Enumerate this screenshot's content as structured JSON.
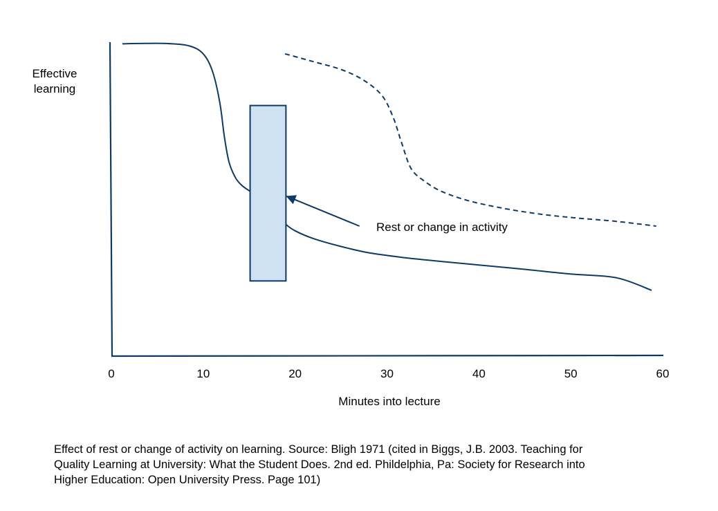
{
  "chart_data": {
    "type": "line",
    "ylabel": [
      "Effective",
      "learning"
    ],
    "xlabel": "Minutes into lecture",
    "xlim": [
      0,
      60
    ],
    "ylim": [
      0,
      1
    ],
    "x_ticks": [
      0,
      10,
      20,
      30,
      40,
      50,
      60
    ],
    "series": [
      {
        "style": "solid",
        "color": "#0d3a64",
        "points": [
          [
            1.2,
            0.997
          ],
          [
            3,
            0.998
          ],
          [
            6,
            0.998
          ],
          [
            8.5,
            0.99
          ],
          [
            10,
            0.965
          ],
          [
            11,
            0.91
          ],
          [
            11.8,
            0.81
          ],
          [
            12.3,
            0.7
          ],
          [
            12.8,
            0.62
          ],
          [
            13.5,
            0.57
          ],
          [
            14.2,
            0.545
          ],
          [
            15.1,
            0.526
          ],
          null,
          [
            19,
            0.42
          ],
          [
            20,
            0.4
          ],
          [
            22,
            0.375
          ],
          [
            25,
            0.35
          ],
          [
            28,
            0.33
          ],
          [
            32,
            0.314
          ],
          [
            36,
            0.302
          ],
          [
            40,
            0.291
          ],
          [
            45,
            0.277
          ],
          [
            50,
            0.262
          ],
          [
            55,
            0.25
          ],
          [
            58.8,
            0.21
          ]
        ]
      },
      {
        "style": "dashed",
        "color": "#0d3a64",
        "points": [
          [
            18.9,
            0.965
          ],
          [
            22,
            0.94
          ],
          [
            25,
            0.915
          ],
          [
            27.5,
            0.88
          ],
          [
            29.5,
            0.83
          ],
          [
            30.7,
            0.76
          ],
          [
            31.6,
            0.68
          ],
          [
            32.6,
            0.6
          ],
          [
            34,
            0.56
          ],
          [
            36,
            0.525
          ],
          [
            39,
            0.495
          ],
          [
            43,
            0.47
          ],
          [
            47,
            0.452
          ],
          [
            51,
            0.44
          ],
          [
            55,
            0.43
          ],
          [
            59.3,
            0.415
          ]
        ]
      }
    ],
    "annotations": [
      {
        "type": "rect",
        "x0": 15.1,
        "x1": 19,
        "y0": 0.24,
        "y1": 0.8,
        "fill": "#cfe2f3",
        "stroke": "#0d3a64"
      },
      {
        "type": "arrow",
        "text": "Rest or change in activity",
        "from": [
          27,
          0.415
        ],
        "to": [
          19.1,
          0.51
        ]
      }
    ]
  },
  "caption": [
    "Effect of rest or change of activity on learning. Source: Bligh 1971 (cited in Biggs, J.B. 2003. Teaching for",
    "Quality Learning at University: What the Student Does. 2nd ed. Phildelphia, Pa: Society for Research into",
    "Higher Education: Open University Press. Page 101)"
  ]
}
